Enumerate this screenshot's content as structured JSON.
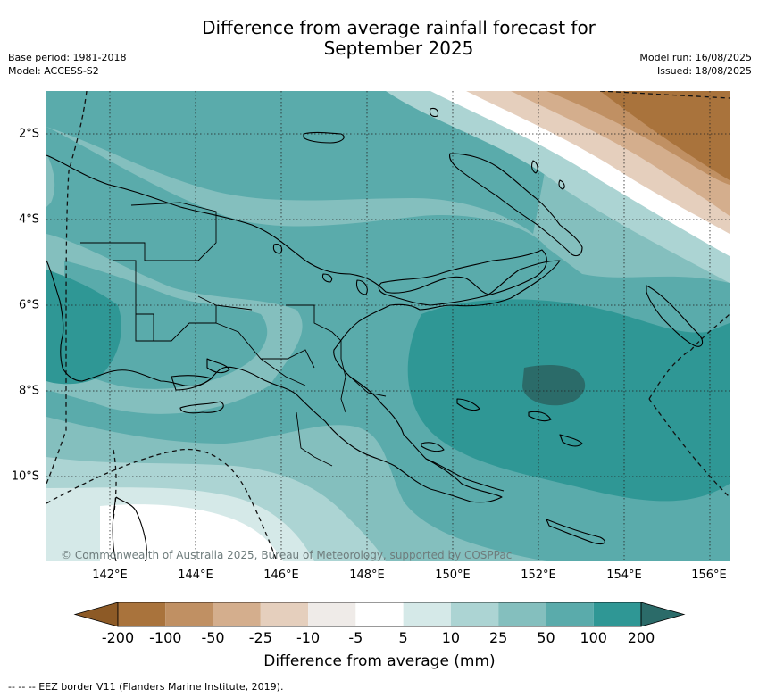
{
  "title_line1": "Difference from average rainfall forecast for",
  "title_line2": "September 2025",
  "base_period": "Base period: 1981-2018",
  "model": "Model: ACCESS-S2",
  "model_run": "Model run: 16/08/2025",
  "issued": "Issued: 18/08/2025",
  "copyright": "© Commonwealth of Australia 2025, Bureau of Meteorology, supported by COSPPac",
  "lat_labels": [
    "2°S",
    "4°S",
    "6°S",
    "8°S",
    "10°S"
  ],
  "lon_labels": [
    "142°E",
    "144°E",
    "146°E",
    "148°E",
    "150°E",
    "152°E",
    "154°E",
    "156°E"
  ],
  "colorbar": {
    "title": "Difference from average (mm)",
    "tick_labels": [
      "-200",
      "-100",
      "-50",
      "-25",
      "-10",
      "-5",
      "5",
      "10",
      "25",
      "50",
      "100",
      "200"
    ],
    "colors": [
      "#8d5a26",
      "#a9733c",
      "#c09063",
      "#d4ae8d",
      "#e5cfbd",
      "#efebe8",
      "#ffffff",
      "#d5e9e8",
      "#acd4d3",
      "#84bfbe",
      "#5aabab",
      "#2f9795",
      "#2b6b69"
    ]
  },
  "footer": "--  --  -- EEZ border V11 (Flanders Marine Institute, 2019)."
}
